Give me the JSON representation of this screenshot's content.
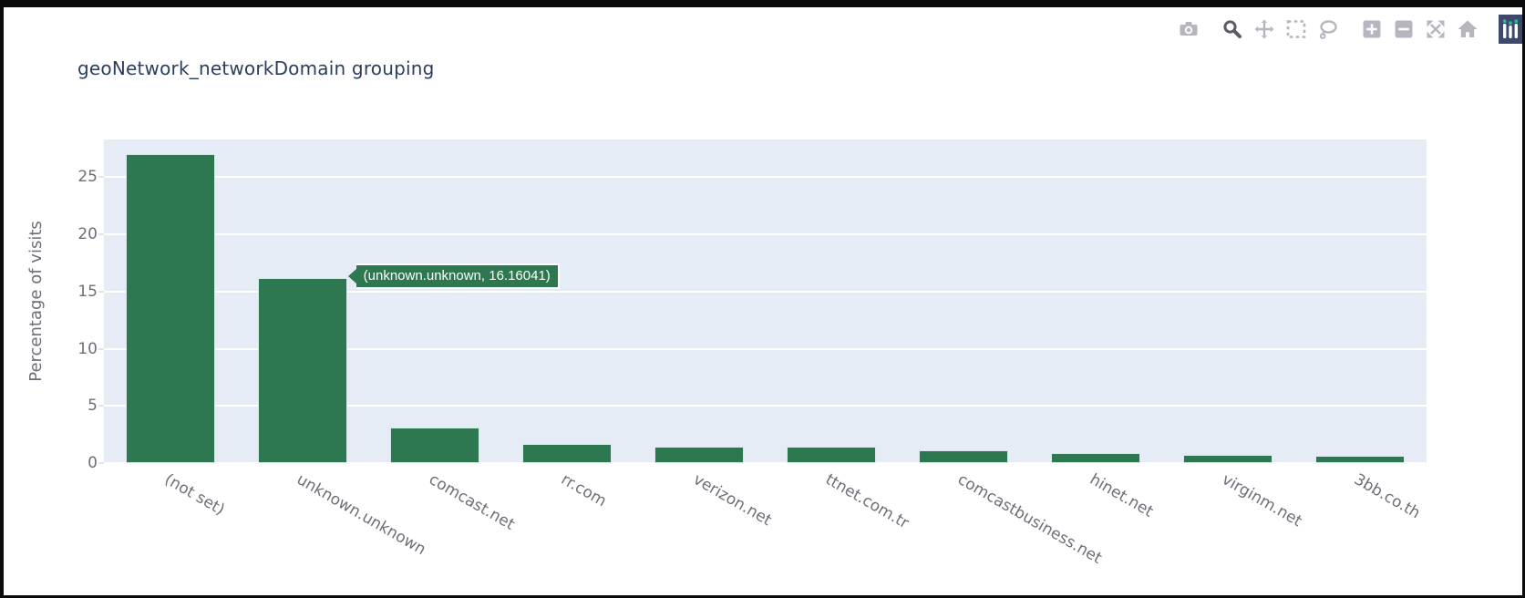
{
  "window": {
    "frame_color": "#0a0a0c",
    "page_background": "#ffffff"
  },
  "header": {
    "title": "geoNetwork_networkDomain grouping",
    "title_color": "#2a3f5f"
  },
  "modebar": {
    "icon_color": "#b6b6c1",
    "active_icon_color": "#5c5c66",
    "buttons": [
      {
        "name": "camera-icon",
        "active": false,
        "group_start": false
      },
      {
        "name": "zoom-icon",
        "active": true,
        "group_start": true
      },
      {
        "name": "pan-icon",
        "active": false,
        "group_start": false
      },
      {
        "name": "box-select-icon",
        "active": false,
        "group_start": false
      },
      {
        "name": "lasso-select-icon",
        "active": false,
        "group_start": false
      },
      {
        "name": "zoom-in-icon",
        "active": false,
        "group_start": true
      },
      {
        "name": "zoom-out-icon",
        "active": false,
        "group_start": false
      },
      {
        "name": "autoscale-icon",
        "active": false,
        "group_start": false
      },
      {
        "name": "reset-home-icon",
        "active": false,
        "group_start": false
      }
    ],
    "logo": {
      "name": "plotly-logo",
      "bg": "#3b4a6b",
      "bar_color": "#ffffff",
      "cap_color": "#30bb96"
    }
  },
  "hover_label": {
    "text": "(unknown.unknown, 16.16041)",
    "bg": "#2d7850",
    "text_color": "#ffffff",
    "bar_index": 1
  },
  "chart_data": {
    "type": "bar",
    "title": "geoNetwork_networkDomain grouping",
    "xlabel": "",
    "ylabel": "Percentage of visits",
    "categories": [
      "(not set)",
      "unknown.unknown",
      "comcast.net",
      "rr.com",
      "verizon.net",
      "ttnet.com.tr",
      "comcastbusiness.net",
      "hinet.net",
      "virginm.net",
      "3bb.co.th"
    ],
    "values": [
      27.0,
      16.16041,
      3.1,
      1.64,
      1.46,
      1.4,
      1.08,
      0.87,
      0.69,
      0.64
    ],
    "yticks": [
      0,
      5,
      10,
      15,
      20,
      25
    ],
    "ylim": [
      0,
      28.3
    ],
    "bar_color": "#2d7850",
    "plot_bg": "#e5ecf6",
    "grid": "on",
    "grid_color": "#ffffff",
    "tick_color": "#6e6e78",
    "legend": "none"
  }
}
